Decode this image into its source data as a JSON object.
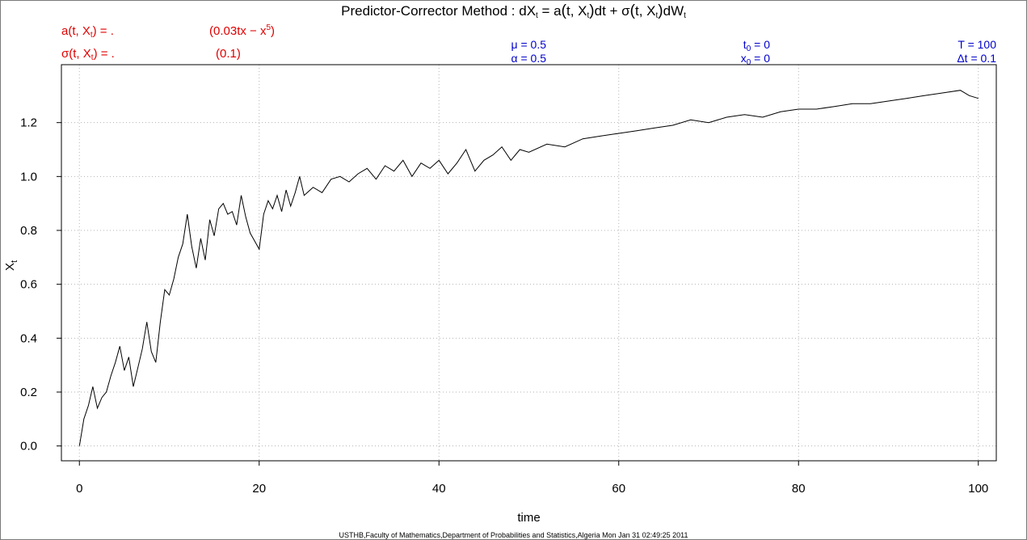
{
  "chart_data": {
    "type": "line",
    "title": {
      "prefix": "Predictor-Corrector Method : dX",
      "t1": "t",
      "eq": " = a",
      "paren_open": "(",
      "args_a": "t, X",
      "t2": "t",
      "paren_close": ")",
      "mid": "dt + σ",
      "args_s": "t, X",
      "t3": "t",
      "tail": "dW",
      "t4": "t"
    },
    "xlabel": "time",
    "ylabel": {
      "base": "X",
      "sub": "t"
    },
    "xlim": [
      -2,
      102
    ],
    "ylim": [
      -0.055,
      1.415
    ],
    "xticks": [
      "0",
      "20",
      "40",
      "60",
      "80",
      "100"
    ],
    "yticks": [
      "0.0",
      "0.2",
      "0.4",
      "0.6",
      "0.8",
      "1.0",
      "1.2"
    ],
    "grid": true,
    "series": [
      {
        "color": "#000000",
        "x": [
          0,
          0.5,
          1,
          1.5,
          2,
          2.5,
          3,
          3.5,
          4,
          4.5,
          5,
          5.5,
          6,
          6.5,
          7,
          7.5,
          8,
          8.5,
          9,
          9.5,
          10,
          10.5,
          11,
          11.5,
          12,
          12.5,
          13,
          13.5,
          14,
          14.5,
          15,
          15.5,
          16,
          16.5,
          17,
          17.5,
          18,
          18.5,
          19,
          19.5,
          20,
          20.5,
          21,
          21.5,
          22,
          22.5,
          23,
          23.5,
          24,
          24.5,
          25,
          26,
          27,
          28,
          29,
          30,
          31,
          32,
          33,
          34,
          35,
          36,
          37,
          38,
          39,
          40,
          41,
          42,
          43,
          44,
          45,
          46,
          47,
          48,
          49,
          50,
          52,
          54,
          56,
          58,
          60,
          62,
          64,
          66,
          68,
          70,
          72,
          74,
          76,
          78,
          80,
          82,
          84,
          86,
          88,
          90,
          92,
          94,
          96,
          98,
          99,
          100
        ],
        "y": [
          0.0,
          0.1,
          0.15,
          0.22,
          0.14,
          0.18,
          0.2,
          0.26,
          0.31,
          0.37,
          0.28,
          0.33,
          0.22,
          0.29,
          0.36,
          0.46,
          0.35,
          0.31,
          0.46,
          0.58,
          0.56,
          0.62,
          0.7,
          0.75,
          0.86,
          0.74,
          0.66,
          0.77,
          0.69,
          0.84,
          0.78,
          0.88,
          0.9,
          0.86,
          0.87,
          0.82,
          0.93,
          0.85,
          0.79,
          0.76,
          0.73,
          0.86,
          0.91,
          0.88,
          0.93,
          0.87,
          0.95,
          0.89,
          0.94,
          1.0,
          0.93,
          0.96,
          0.94,
          0.99,
          1.0,
          0.98,
          1.01,
          1.03,
          0.99,
          1.04,
          1.02,
          1.06,
          1.0,
          1.05,
          1.03,
          1.06,
          1.01,
          1.05,
          1.1,
          1.02,
          1.06,
          1.08,
          1.11,
          1.06,
          1.1,
          1.09,
          1.12,
          1.11,
          1.14,
          1.15,
          1.16,
          1.17,
          1.18,
          1.19,
          1.21,
          1.2,
          1.22,
          1.23,
          1.22,
          1.24,
          1.25,
          1.25,
          1.26,
          1.27,
          1.27,
          1.28,
          1.29,
          1.3,
          1.31,
          1.32,
          1.3,
          1.29
        ]
      }
    ]
  },
  "annotations": {
    "a_label": {
      "pre": "a",
      "open": "(",
      "args": "t, X",
      "sub": "t",
      "close": ")",
      "post": " = ."
    },
    "a_value": {
      "pre": "(0.03tx − x",
      "sup": "5",
      "post": ")"
    },
    "s_label": {
      "pre": "σ",
      "open": "(",
      "args": "t, X",
      "sub": "t",
      "close": ")",
      "post": " = ."
    },
    "s_value": "(0.1)",
    "mu": "μ = 0.5",
    "alpha": "α = 0.5",
    "t0": {
      "base": "t",
      "sub": "0",
      "val": " = 0"
    },
    "x0": {
      "base": "x",
      "sub": "0",
      "val": " = 0"
    },
    "T": "T = 100",
    "dt": "Δt = 0.1"
  },
  "footer": "USTHB,Faculty of Mathematics,Department of Probabilities and Statistics,Algeria Mon Jan 31 02:49:25 2011",
  "colors": {
    "annotation_red": "#e00000",
    "annotation_blue": "#0000cc",
    "grid": "#b3b3b3"
  }
}
